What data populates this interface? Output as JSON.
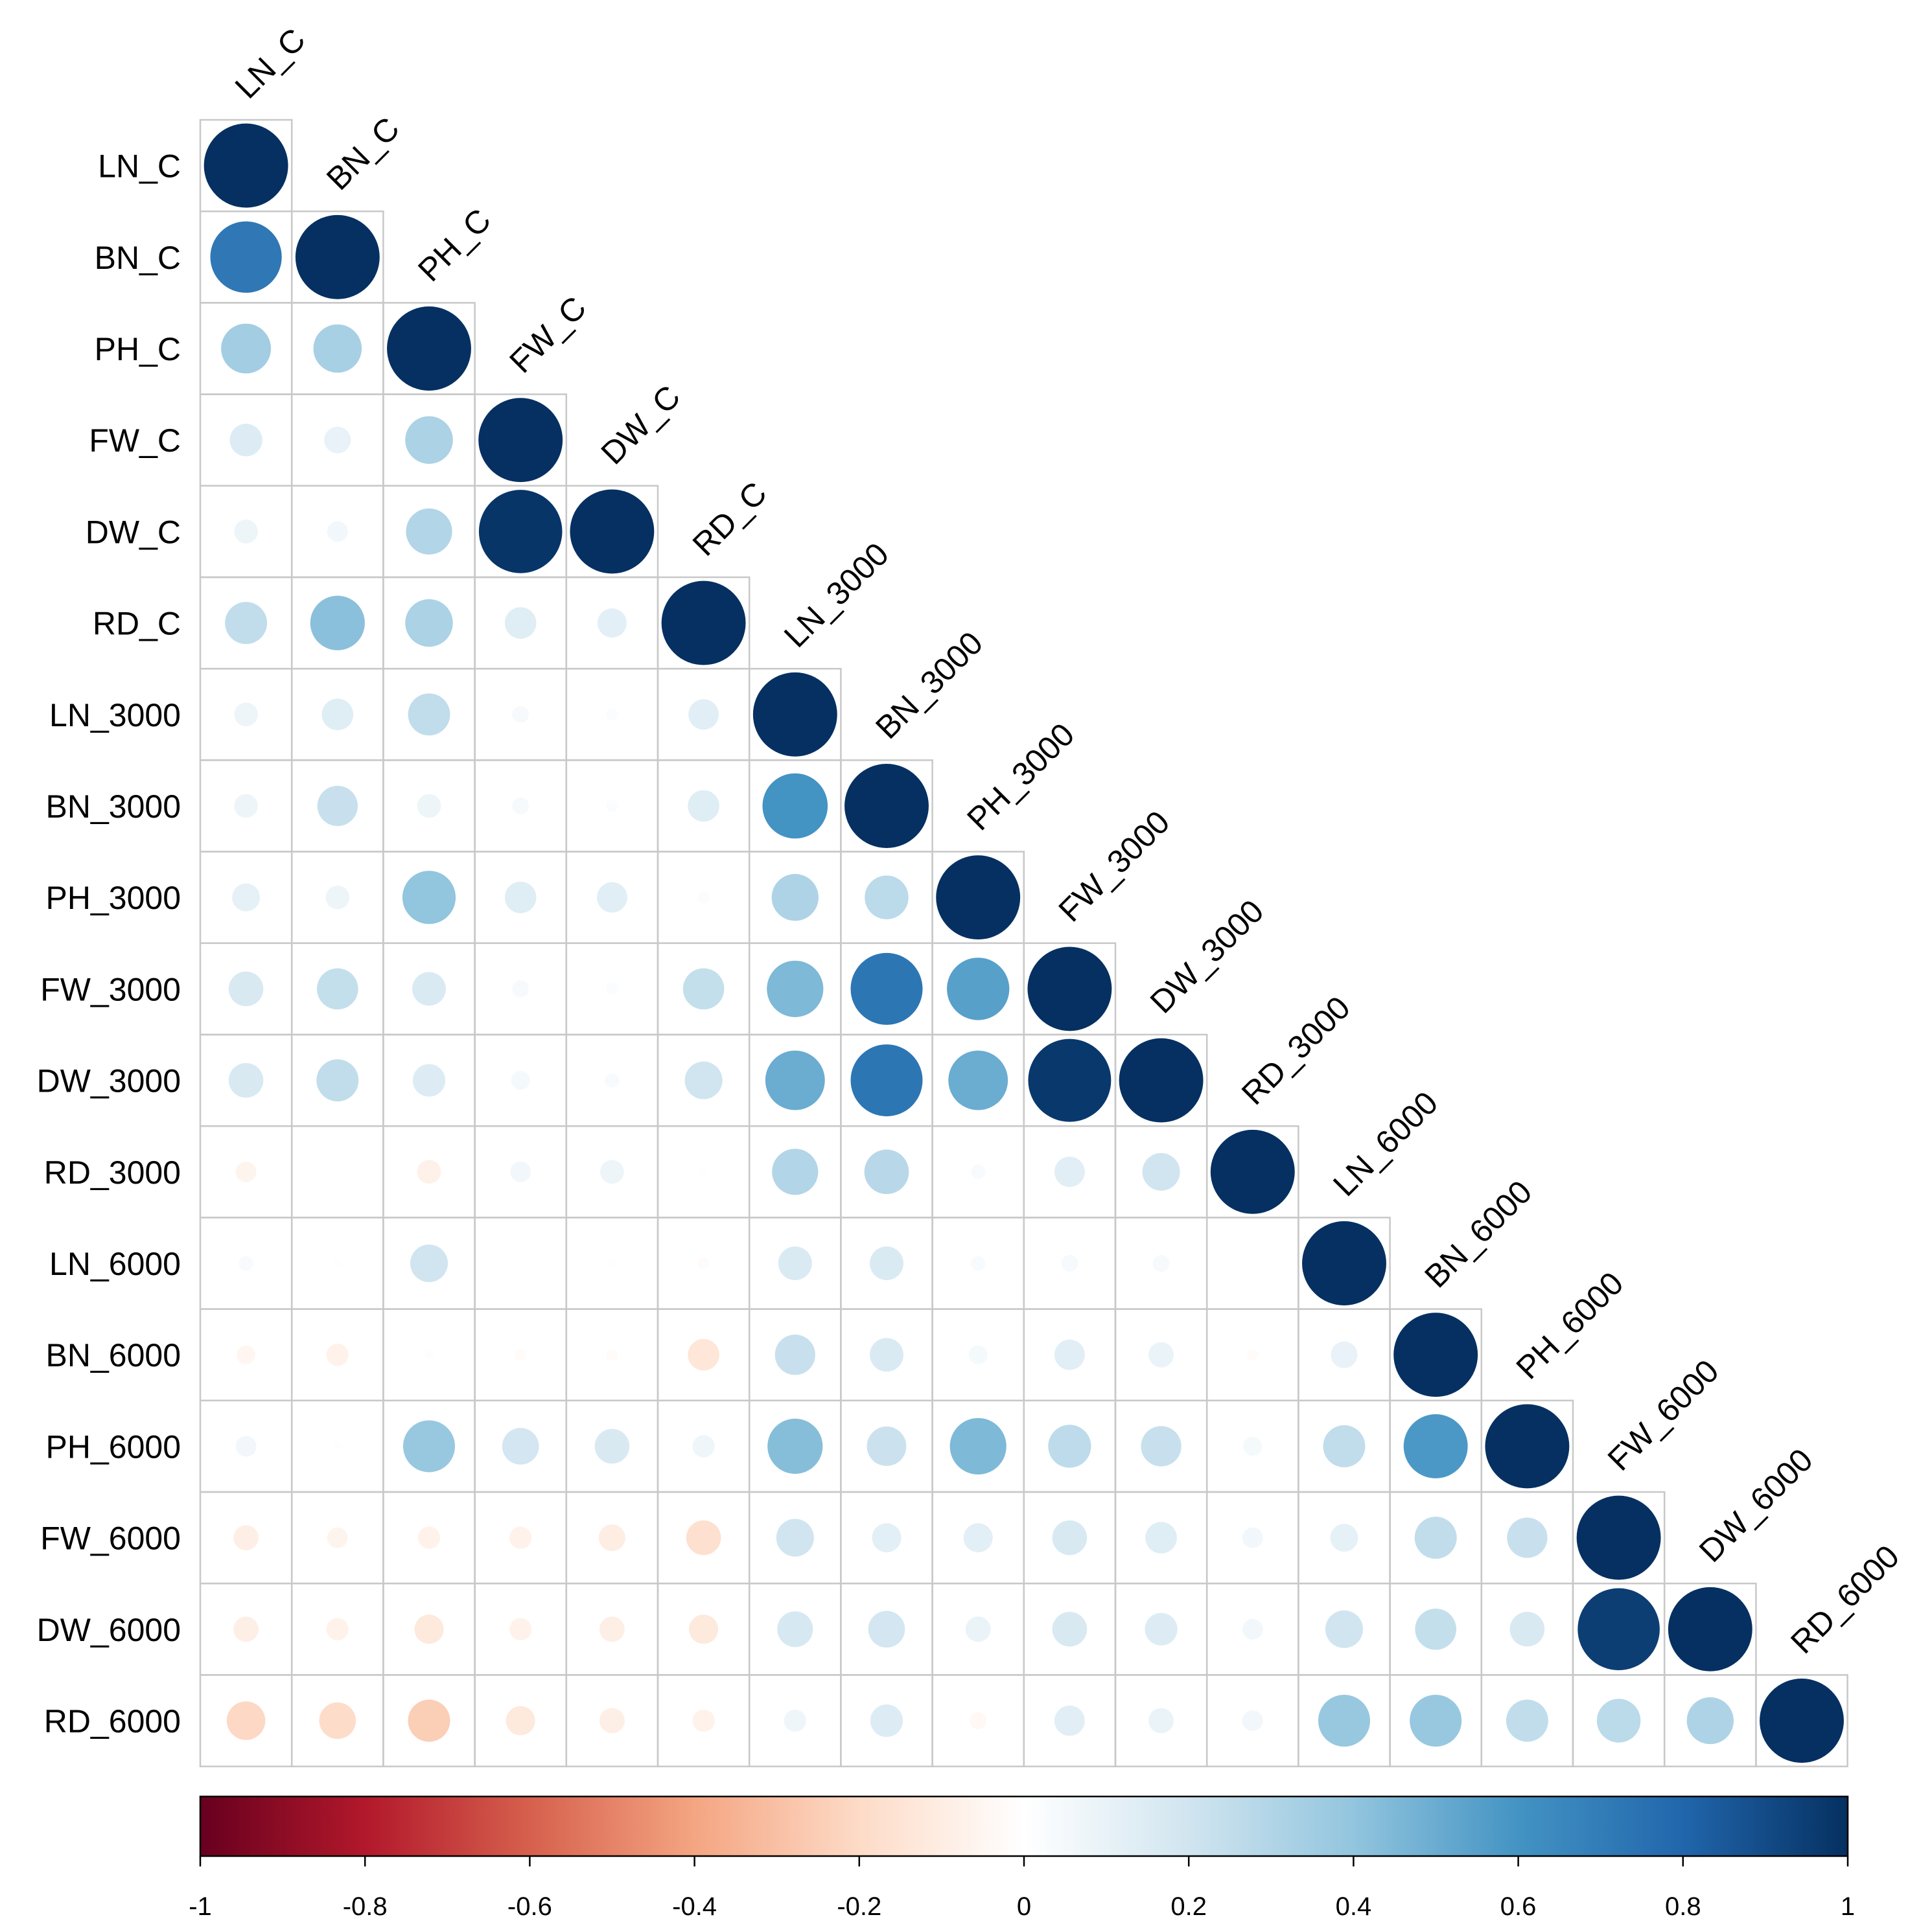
{
  "chart_data": {
    "type": "heatmap",
    "subtype": "correlation-lower-triangle",
    "glyph": "circle",
    "title": "",
    "variables": [
      "LN_C",
      "BN_C",
      "PH_C",
      "FW_C",
      "DW_C",
      "RD_C",
      "LN_3000",
      "BN_3000",
      "PH_3000",
      "FW_3000",
      "DW_3000",
      "RD_3000",
      "LN_6000",
      "BN_6000",
      "PH_6000",
      "FW_6000",
      "DW_6000",
      "RD_6000"
    ],
    "matrix": [
      [
        1.0
      ],
      [
        0.72,
        1.0
      ],
      [
        0.35,
        0.33,
        1.0
      ],
      [
        0.15,
        0.1,
        0.32,
        1.0
      ],
      [
        0.08,
        0.06,
        0.3,
        0.98,
        1.0
      ],
      [
        0.25,
        0.42,
        0.32,
        0.14,
        0.12,
        1.0
      ],
      [
        0.08,
        0.14,
        0.25,
        0.04,
        0.02,
        0.13,
        1.0
      ],
      [
        0.08,
        0.23,
        0.08,
        0.04,
        0.02,
        0.14,
        0.6,
        1.0
      ],
      [
        0.11,
        0.08,
        0.4,
        0.14,
        0.13,
        0.02,
        0.31,
        0.27,
        1.0
      ],
      [
        0.17,
        0.24,
        0.16,
        0.04,
        0.02,
        0.24,
        0.45,
        0.73,
        0.55,
        1.0
      ],
      [
        0.17,
        0.25,
        0.15,
        0.05,
        0.03,
        0.2,
        0.5,
        0.73,
        0.5,
        0.97,
        1.0
      ],
      [
        -0.06,
        0.0,
        -0.08,
        0.06,
        0.08,
        0.01,
        0.3,
        0.28,
        0.03,
        0.13,
        0.2,
        1.0
      ],
      [
        0.03,
        0.01,
        0.2,
        0.0,
        0.01,
        -0.02,
        0.16,
        0.16,
        0.03,
        0.04,
        0.04,
        0.0,
        1.0
      ],
      [
        -0.05,
        -0.07,
        -0.01,
        -0.02,
        -0.02,
        -0.14,
        0.23,
        0.16,
        0.05,
        0.13,
        0.09,
        -0.02,
        0.1,
        1.0
      ],
      [
        0.06,
        0.01,
        0.38,
        0.19,
        0.17,
        0.07,
        0.43,
        0.22,
        0.45,
        0.26,
        0.23,
        0.05,
        0.25,
        0.58,
        1.0
      ],
      [
        -0.09,
        -0.06,
        -0.07,
        -0.07,
        -0.1,
        -0.17,
        0.2,
        0.12,
        0.12,
        0.17,
        0.14,
        0.06,
        0.11,
        0.25,
        0.23,
        1.0
      ],
      [
        -0.09,
        -0.07,
        -0.12,
        -0.07,
        -0.09,
        -0.12,
        0.18,
        0.19,
        0.09,
        0.17,
        0.15,
        0.06,
        0.2,
        0.24,
        0.17,
        0.95,
        1.0
      ],
      [
        -0.21,
        -0.19,
        -0.25,
        -0.12,
        -0.09,
        -0.07,
        0.07,
        0.15,
        -0.04,
        0.13,
        0.09,
        0.06,
        0.38,
        0.38,
        0.25,
        0.27,
        0.31,
        1.0
      ]
    ],
    "colorbar": {
      "min": -1,
      "max": 1,
      "ticks": [
        "-1",
        "-0.8",
        "-0.6",
        "-0.4",
        "-0.2",
        "0",
        "0.2",
        "0.4",
        "0.6",
        "0.8",
        "1"
      ],
      "palette": [
        "#67001F",
        "#B2182B",
        "#D6604D",
        "#F4A582",
        "#FDDBC7",
        "#FFFFFF",
        "#D1E5F0",
        "#92C5DE",
        "#4393C3",
        "#2166AC",
        "#053061"
      ],
      "placement": "bottom"
    },
    "grid_color": "#C8C8C8"
  }
}
